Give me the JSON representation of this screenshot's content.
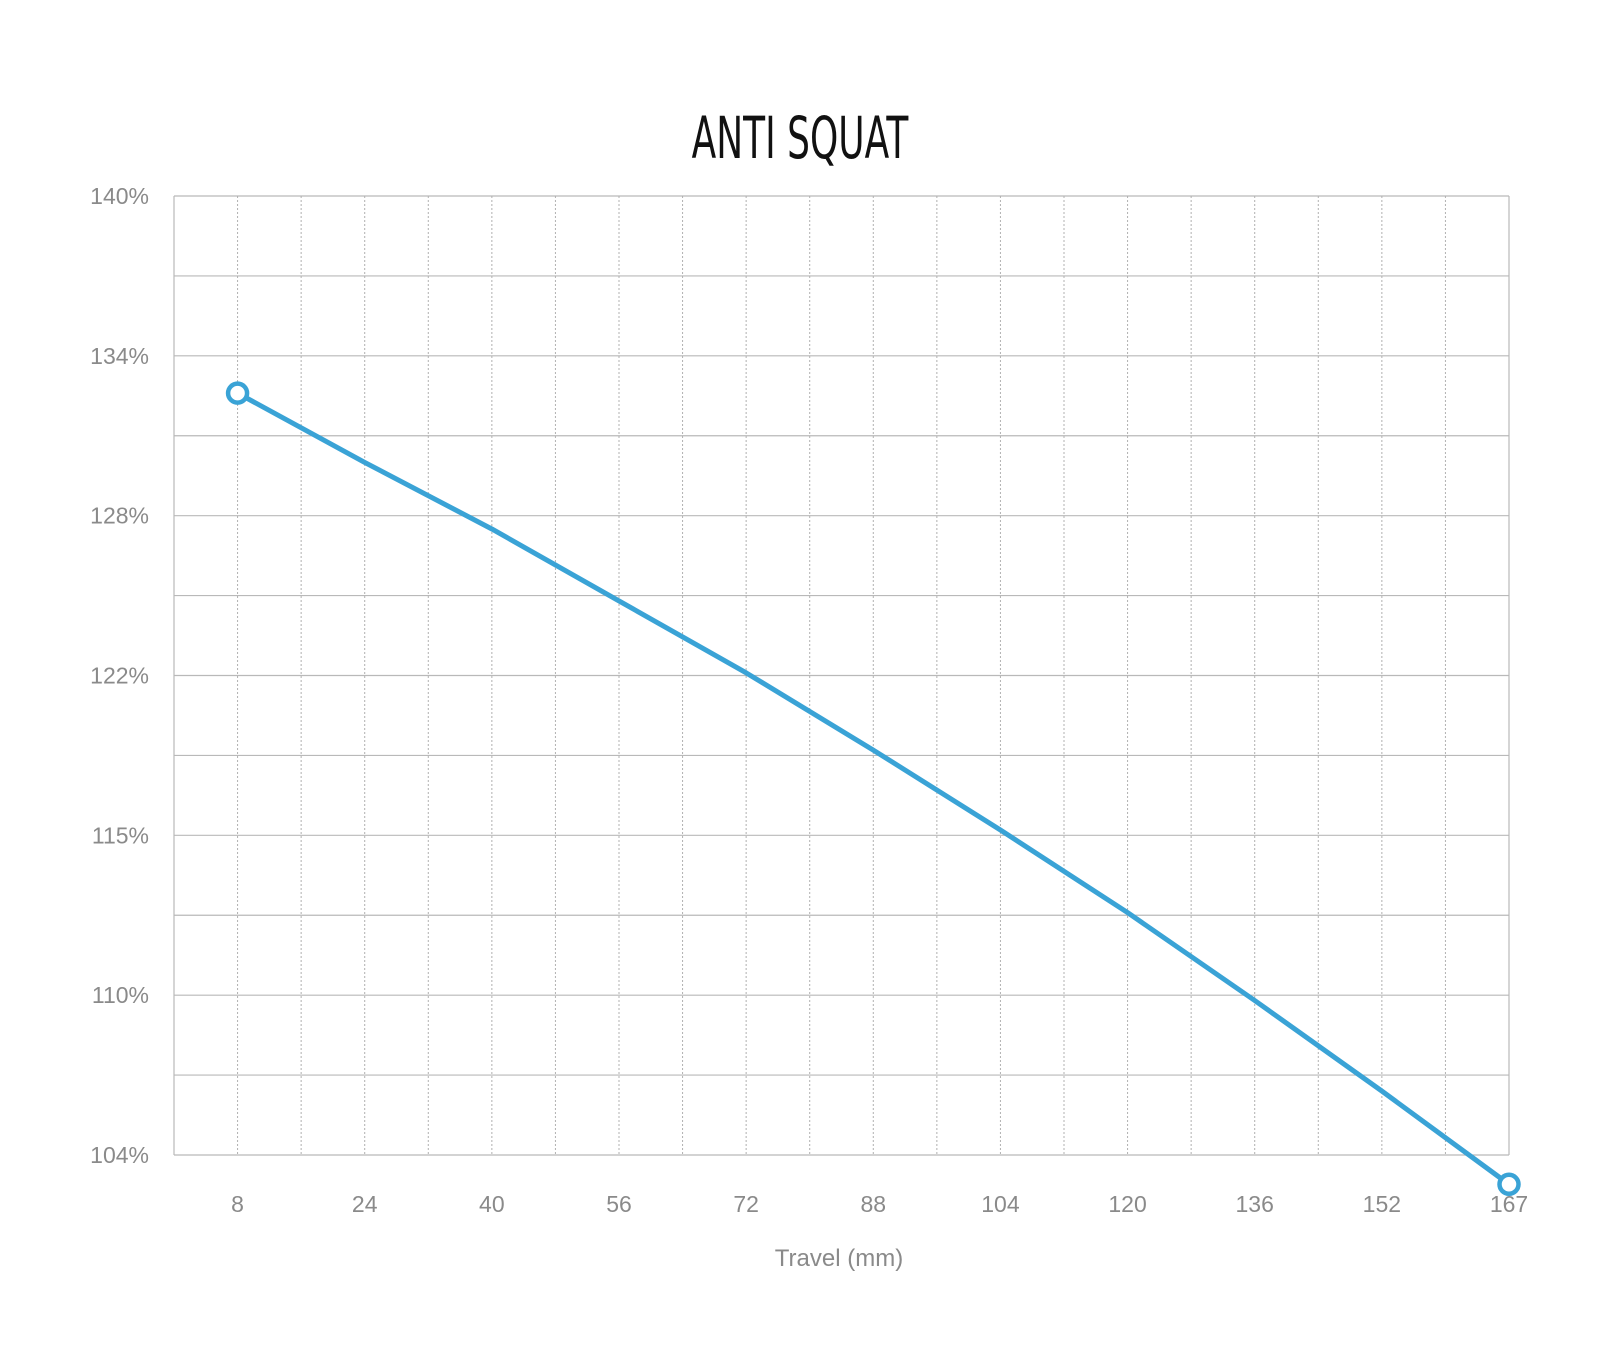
{
  "chart_data": {
    "type": "line",
    "title": "ANTI SQUAT",
    "xlabel": "Travel (mm)",
    "ylabel": "",
    "x_ticks": [
      "8",
      "24",
      "40",
      "56",
      "72",
      "88",
      "104",
      "120",
      "136",
      "152",
      "167"
    ],
    "y_ticks": [
      "140%",
      "134%",
      "128%",
      "122%",
      "115%",
      "110%",
      "104%"
    ],
    "xlim": [
      0,
      167
    ],
    "ylim": [
      104,
      140
    ],
    "grid": true,
    "series": [
      {
        "color": "#3aa3d6",
        "x": [
          8,
          24,
          40,
          56,
          72,
          88,
          104,
          120,
          136,
          152,
          167
        ],
        "y": [
          132.6,
          130.0,
          127.5,
          124.8,
          122.1,
          119.2,
          116.2,
          113.1,
          109.8,
          106.4,
          102.9
        ],
        "markers": [
          {
            "x": 8,
            "y": 132.6
          },
          {
            "x": 167,
            "y": 102.9
          }
        ]
      }
    ]
  }
}
